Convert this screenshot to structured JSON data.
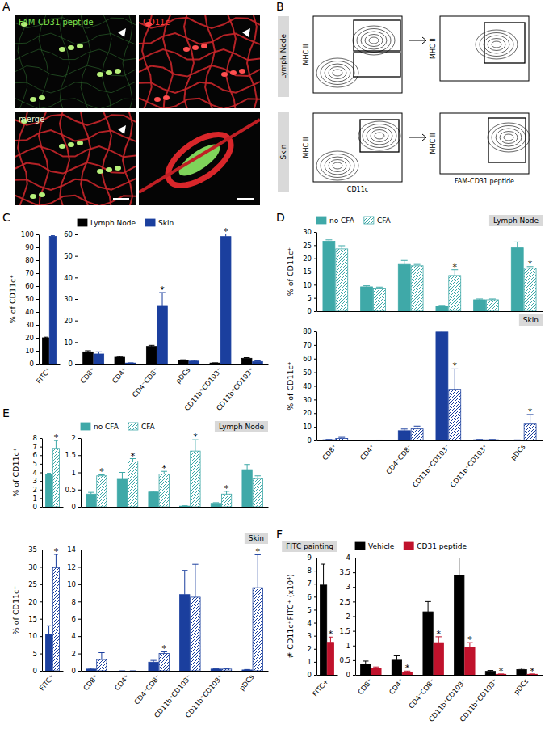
{
  "figure": {
    "panel_labels": [
      "A",
      "B",
      "C",
      "D",
      "E",
      "F"
    ],
    "panel_a": {
      "channels": [
        "FAM-CD31 peptide",
        "CD11c",
        "merge"
      ]
    },
    "panel_b": {
      "rows": [
        "Lymph Node",
        "Skin"
      ],
      "y_label": "MHC II",
      "x_labels": [
        "CD11c",
        "FAM-CD31 peptide"
      ]
    }
  },
  "chart_data": [
    {
      "type": "bar",
      "y_label": "% of CD11c⁺",
      "categories": [
        "FITC⁺"
      ],
      "ylim": [
        0,
        100
      ],
      "yticks": [
        0,
        10,
        20,
        30,
        40,
        50,
        60,
        70,
        80,
        90,
        100
      ],
      "series": [
        {
          "color": "#000000",
          "values": [
            20
          ],
          "errors": [
            0.5
          ]
        },
        {
          "color": "#1b3f9e",
          "values": [
            98.5
          ],
          "errors": [
            0.5
          ]
        }
      ]
    },
    {
      "type": "bar",
      "legend": "top",
      "categories": [
        "CD8⁺",
        "CD4⁺",
        "CD4⁻CD8⁻",
        "pDCs",
        "CD11b⁺CD103⁻",
        "CD11b⁺CD103⁺"
      ],
      "ylim": [
        0,
        60
      ],
      "yticks": [
        0,
        10,
        20,
        30,
        40,
        50,
        60
      ],
      "series": [
        {
          "name": "Lymph Node",
          "color": "#000000",
          "values": [
            5.5,
            3,
            8,
            1.5,
            0.3,
            2.5
          ],
          "errors": [
            0.5,
            0.3,
            0.5,
            0.3,
            0.1,
            0.3
          ]
        },
        {
          "name": "Skin",
          "color": "#1b3f9e",
          "values": [
            4.5,
            0.3,
            27,
            1.2,
            59,
            1
          ],
          "errors": [
            1,
            0.1,
            6,
            0.3,
            5,
            0.3
          ],
          "annotations": [
            null,
            null,
            "*",
            null,
            "*",
            null
          ]
        }
      ]
    },
    {
      "type": "bar",
      "title": "Lymph Node",
      "legend": "top",
      "tick_labels": "y",
      "y_label": "% of CD11c⁺",
      "categories": [
        "CD8⁺",
        "CD4⁺",
        "CD4⁻CD8⁻",
        "CD11b⁺CD103⁻",
        "CD11b⁺CD103⁺",
        "pDCs"
      ],
      "ylim": [
        0,
        30
      ],
      "yticks": [
        0,
        5,
        10,
        15,
        20,
        25,
        30
      ],
      "series": [
        {
          "name": "no CFA",
          "color": "#3fa9a8",
          "values": [
            26.5,
            9.2,
            17.7,
            2,
            4.3,
            24
          ],
          "errors": [
            0.5,
            0.4,
            1.5,
            0.2,
            0.3,
            2.2
          ]
        },
        {
          "name": "CFA",
          "color": "#3fa9a8",
          "values": [
            23.6,
            8.7,
            17.2,
            13.5,
            4.3,
            16.3
          ],
          "errors": [
            1.2,
            0.4,
            0.5,
            2.2,
            0.3,
            0.6
          ],
          "annotations": [
            null,
            null,
            null,
            "*",
            null,
            "*"
          ]
        }
      ]
    },
    {
      "type": "bar",
      "title": "Skin",
      "y_label": "% of CD11c⁺",
      "categories": [
        "CD8⁺",
        "CD4⁺",
        "CD4⁻CD8⁻",
        "CD11b⁺CD103⁻",
        "CD11b⁺CD103⁺",
        "pDCs"
      ],
      "ylim": [
        0,
        80
      ],
      "yticks": [
        0,
        10,
        20,
        30,
        40,
        50,
        60,
        70,
        80
      ],
      "series": [
        {
          "color": "#1b3f9e",
          "values": [
            0.5,
            0.1,
            7.2,
            79.5,
            0.5,
            0.3
          ],
          "errors": [
            0.2,
            0.05,
            1.2,
            2.5,
            0.2,
            0.1
          ]
        },
        {
          "color": "#1b3f9e",
          "values": [
            1.5,
            0.2,
            8.5,
            37.5,
            0.5,
            12
          ],
          "errors": [
            0.8,
            0.1,
            2,
            15,
            0.2,
            7
          ],
          "annotations": [
            null,
            null,
            null,
            "*",
            null,
            "*"
          ]
        }
      ]
    },
    {
      "type": "bar",
      "tick_labels": "y",
      "y_label": "% of CD11c⁺",
      "categories": [
        "FITC⁺"
      ],
      "ylim": [
        0,
        8
      ],
      "yticks": [
        0,
        1,
        2,
        3,
        4,
        5,
        6,
        7,
        8
      ],
      "series": [
        {
          "color": "#3fa9a8",
          "values": [
            3.8
          ],
          "errors": [
            0.1
          ]
        },
        {
          "color": "#3fa9a8",
          "values": [
            6.8
          ],
          "errors": [
            0.9
          ],
          "annotations": [
            "*"
          ]
        }
      ]
    },
    {
      "type": "bar",
      "title": "Lymph Node",
      "legend": "top",
      "tick_labels": "y",
      "categories": [
        "CD8⁺",
        "CD4⁺",
        "CD4⁻CD8⁻",
        "CD11b⁺CD103⁻",
        "CD11b⁺CD103⁺",
        "pDCs"
      ],
      "ylim": [
        0,
        2
      ],
      "yticks": [
        0,
        0.5,
        1,
        1.5,
        2
      ],
      "series": [
        {
          "name": "no CFA",
          "color": "#3fa9a8",
          "values": [
            0.37,
            0.8,
            0.43,
            0.02,
            0.1,
            1.08
          ],
          "errors": [
            0.05,
            0.2,
            0.02,
            0.01,
            0.02,
            0.15
          ]
        },
        {
          "name": "CFA",
          "color": "#3fa9a8",
          "values": [
            0.9,
            1.33,
            0.95,
            1.62,
            0.37,
            0.82
          ],
          "errors": [
            0.03,
            0.07,
            0.08,
            0.33,
            0.08,
            0.08
          ],
          "annotations": [
            "*",
            "*",
            "*",
            "*",
            "*",
            null
          ]
        }
      ]
    },
    {
      "type": "bar",
      "y_label": "% of CD11c⁺",
      "categories": [
        "FITC⁺"
      ],
      "ylim": [
        0,
        35
      ],
      "yticks": [
        0,
        5,
        10,
        15,
        20,
        25,
        30,
        35
      ],
      "series": [
        {
          "color": "#1b3f9e",
          "values": [
            10.5
          ],
          "errors": [
            2.5
          ]
        },
        {
          "color": "#1b3f9e",
          "values": [
            29.8
          ],
          "errors": [
            3.8
          ],
          "annotations": [
            "*"
          ]
        }
      ]
    },
    {
      "type": "bar",
      "title": "Skin",
      "categories": [
        "CD8⁺",
        "CD4⁺",
        "CD4⁻CD8⁻",
        "CD11b⁺CD103⁻",
        "CD11b⁺CD103⁺",
        "pDCs"
      ],
      "ylim": [
        0,
        14
      ],
      "yticks": [
        0,
        2,
        4,
        6,
        8,
        10,
        12,
        14
      ],
      "series": [
        {
          "color": "#1b3f9e",
          "values": [
            0.2,
            0,
            1,
            8.8,
            0.2,
            0.1
          ],
          "errors": [
            0.1,
            0,
            0.2,
            2.8,
            0.05,
            0.05
          ]
        },
        {
          "color": "#1b3f9e",
          "values": [
            1.3,
            0,
            2,
            8.5,
            0.2,
            9.6
          ],
          "errors": [
            0.8,
            0,
            0.2,
            3.8,
            0.05,
            3.8
          ],
          "annotations": [
            null,
            null,
            "*",
            null,
            null,
            "*"
          ]
        }
      ]
    },
    {
      "type": "bar",
      "title": "FITC painting",
      "y_label": "# CD11c⁺FITC⁺ (x10⁴)",
      "categories": [
        "FITC+"
      ],
      "ylim": [
        0,
        9
      ],
      "yticks": [
        0,
        1,
        2,
        3,
        4,
        5,
        6,
        7,
        8,
        9
      ],
      "series": [
        {
          "color": "#000000",
          "values": [
            6.9
          ],
          "errors": [
            1.6
          ]
        },
        {
          "color": "#c0122c",
          "values": [
            2.5
          ],
          "errors": [
            0.4
          ],
          "annotations": [
            "*"
          ]
        }
      ]
    },
    {
      "type": "bar",
      "legend": "top",
      "categories": [
        "CD8⁺",
        "CD4⁺",
        "CD4⁻CD8⁻",
        "CD11b⁺CD103⁻",
        "CD11b⁺CD103⁺",
        "pDCs"
      ],
      "ylim": [
        0,
        4
      ],
      "yticks": [
        0,
        0.5,
        1,
        1.5,
        2,
        2.5,
        3,
        3.5,
        4
      ],
      "series": [
        {
          "name": "Vehicle",
          "color": "#000000",
          "values": [
            0.37,
            0.5,
            2.15,
            3.4,
            0.12,
            0.18
          ],
          "errors": [
            0.1,
            0.15,
            0.35,
            0.9,
            0.03,
            0.05
          ]
        },
        {
          "name": "CD31 peptide",
          "color": "#c0122c",
          "values": [
            0.22,
            0.1,
            1.1,
            0.95,
            0.02,
            0.02
          ],
          "errors": [
            0.05,
            0.03,
            0.2,
            0.15,
            0.01,
            0.01
          ],
          "annotations": [
            null,
            "*",
            "*",
            "*",
            "*",
            "*"
          ]
        }
      ]
    }
  ]
}
